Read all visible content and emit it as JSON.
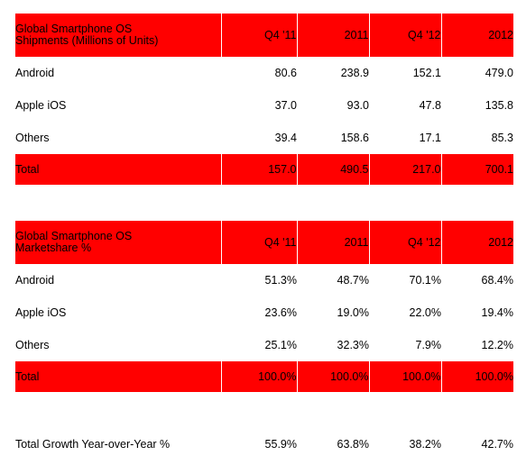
{
  "chart_data": [
    {
      "type": "table",
      "title": "Global Smartphone OS\nShipments (Millions of Units)",
      "columns": [
        "Q4 '11",
        "2011",
        "Q4 '12",
        "2012"
      ],
      "rows": [
        {
          "label": "Android",
          "values": [
            "80.6",
            "238.9",
            "152.1",
            "479.0"
          ]
        },
        {
          "label": "Apple iOS",
          "values": [
            "37.0",
            "93.0",
            "47.8",
            "135.8"
          ]
        },
        {
          "label": "Others",
          "values": [
            "39.4",
            "158.6",
            "17.1",
            "85.3"
          ]
        }
      ],
      "total": {
        "label": "Total",
        "values": [
          "157.0",
          "490.5",
          "217.0",
          "700.1"
        ]
      },
      "header_color": "#ff0000"
    },
    {
      "type": "table",
      "title": "Global Smartphone OS\nMarketshare  %",
      "columns": [
        "Q4 '11",
        "2011",
        "Q4 '12",
        "2012"
      ],
      "rows": [
        {
          "label": "Android",
          "values": [
            "51.3%",
            "48.7%",
            "70.1%",
            "68.4%"
          ]
        },
        {
          "label": "Apple iOS",
          "values": [
            "23.6%",
            "19.0%",
            "22.0%",
            "19.4%"
          ]
        },
        {
          "label": "Others",
          "values": [
            "25.1%",
            "32.3%",
            "7.9%",
            "12.2%"
          ]
        }
      ],
      "total": {
        "label": "Total",
        "values": [
          "100.0%",
          "100.0%",
          "100.0%",
          "100.0%"
        ]
      },
      "header_color": "#ff0000"
    },
    {
      "type": "table",
      "rows": [
        {
          "label": "Total Growth Year-over-Year %",
          "values": [
            "55.9%",
            "63.8%",
            "38.2%",
            "42.7%"
          ]
        }
      ]
    }
  ]
}
